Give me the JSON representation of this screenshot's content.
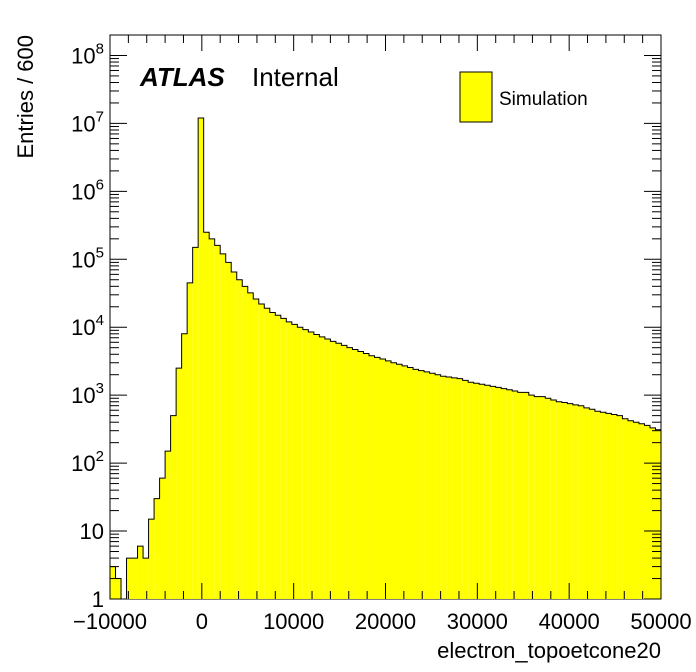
{
  "chart_data": {
    "type": "histogram",
    "xlabel": "electron_topoetcone20",
    "ylabel": "Entries / 600",
    "xlim": [
      -10000,
      50000
    ],
    "ylim": [
      1,
      200000000
    ],
    "yscale": "log",
    "bin_width": 600,
    "x_ticks": [
      -10000,
      0,
      10000,
      20000,
      30000,
      40000,
      50000
    ],
    "x_tick_labels": [
      "−10000",
      "0",
      "10000",
      "20000",
      "30000",
      "40000",
      "50000"
    ],
    "y_ticks": [
      {
        "value": 1,
        "base": "1",
        "exp": ""
      },
      {
        "value": 10,
        "base": "10",
        "exp": ""
      },
      {
        "value": 100,
        "base": "10",
        "exp": "2"
      },
      {
        "value": 1000,
        "base": "10",
        "exp": "3"
      },
      {
        "value": 10000,
        "base": "10",
        "exp": "4"
      },
      {
        "value": 100000,
        "base": "10",
        "exp": "5"
      },
      {
        "value": 1000000,
        "base": "10",
        "exp": "6"
      },
      {
        "value": 10000000,
        "base": "10",
        "exp": "7"
      },
      {
        "value": 100000000,
        "base": "10",
        "exp": "8"
      }
    ],
    "atlas_label": "ATLAS",
    "status_label": "Internal",
    "legend_position": "top-right",
    "series": [
      {
        "name": "Simulation",
        "fill_color": "#ffff00",
        "line_color": "#000000",
        "bin_low_edges": [
          -10000,
          -9400,
          -8800,
          -8200,
          -7600,
          -7000,
          -6400,
          -5800,
          -5200,
          -4600,
          -4000,
          -3400,
          -2800,
          -2200,
          -1600,
          -1000,
          -400,
          200,
          800,
          1400,
          2000,
          2600,
          3200,
          3800,
          4400,
          5000,
          5600,
          6200,
          6800,
          7400,
          8000,
          8600,
          9200,
          9800,
          10400,
          11000,
          11600,
          12200,
          12800,
          13400,
          14000,
          14600,
          15200,
          15800,
          16400,
          17000,
          17600,
          18200,
          18800,
          19400,
          20000,
          20600,
          21200,
          21800,
          22400,
          23000,
          23600,
          24200,
          24800,
          25400,
          26000,
          26600,
          27200,
          27800,
          28400,
          29000,
          29600,
          30200,
          30800,
          31400,
          32000,
          32600,
          33200,
          33800,
          34400,
          35000,
          35600,
          36200,
          36800,
          37400,
          38000,
          38600,
          39200,
          39800,
          40400,
          41000,
          41600,
          42200,
          42800,
          43400,
          44000,
          44600,
          45200,
          45800,
          46400,
          47000,
          47600,
          48200,
          48800,
          49400
        ],
        "values": [
          3,
          2,
          0,
          4,
          4,
          6,
          4,
          15,
          30,
          60,
          150,
          500,
          2500,
          8000,
          45000,
          150000,
          12000000,
          250000,
          200000,
          160000,
          120000,
          90000,
          65000,
          50000,
          40000,
          32000,
          26000,
          22000,
          19000,
          16500,
          15000,
          13500,
          12000,
          11000,
          10000,
          9200,
          8500,
          7800,
          7200,
          6700,
          6200,
          5800,
          5400,
          5000,
          4700,
          4400,
          4100,
          3800,
          3600,
          3400,
          3200,
          3000,
          2850,
          2700,
          2550,
          2400,
          2300,
          2200,
          2100,
          2000,
          1900,
          1850,
          1800,
          1750,
          1650,
          1550,
          1500,
          1450,
          1400,
          1350,
          1300,
          1250,
          1200,
          1150,
          1100,
          1100,
          1000,
          950,
          950,
          900,
          850,
          800,
          780,
          750,
          720,
          700,
          650,
          620,
          580,
          560,
          540,
          520,
          500,
          450,
          420,
          400,
          380,
          360,
          330,
          310
        ]
      }
    ]
  }
}
